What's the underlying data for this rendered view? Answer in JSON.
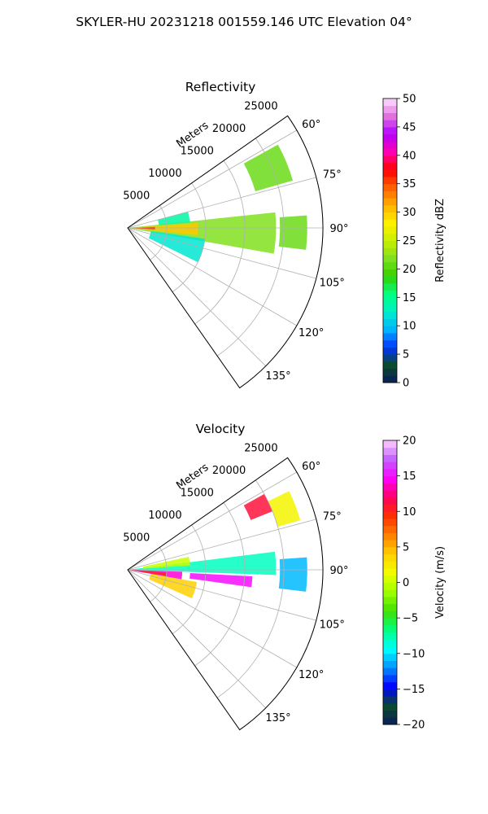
{
  "suptitle": "SKYLER-HU  20231218  001559.146 UTC Elevation 04°",
  "colors": {
    "grid": "#b0b0b0",
    "frame": "#000000",
    "reflectivity_stops": [
      "#081d58",
      "#0b4a2e",
      "#0034ff",
      "#00b4ff",
      "#00f0c8",
      "#00ff80",
      "#35d000",
      "#80e020",
      "#c8f000",
      "#fff000",
      "#ffb000",
      "#ff6000",
      "#ff0000",
      "#ff00b0",
      "#b000ff",
      "#e070e0",
      "#ffe0ff"
    ],
    "velocity_stops": [
      "#081d58",
      "#0b4a2e",
      "#0000ff",
      "#0090ff",
      "#00ffff",
      "#00ff80",
      "#40e000",
      "#a0ff00",
      "#f0ff00",
      "#ffd000",
      "#ff8000",
      "#ff3000",
      "#ff0060",
      "#ff00ff",
      "#c060ff",
      "#ffd0ff"
    ]
  },
  "chart_data": [
    {
      "type": "heatmap",
      "projection": "polar-sector",
      "title": "Reflectivity",
      "r_label": "Meters",
      "r_ticks": [
        5000,
        10000,
        15000,
        20000,
        25000
      ],
      "r_tick_labels": [
        "5000",
        "10000",
        "15000",
        "20000",
        "25000"
      ],
      "r_max": 25000,
      "theta_range_deg": [
        55,
        145
      ],
      "theta_ticks_deg": [
        60,
        75,
        90,
        105,
        120,
        135
      ],
      "theta_tick_labels": [
        "60°",
        "75°",
        "90°",
        "105°",
        "120°",
        "135°"
      ],
      "colorbar": {
        "label": "Reflectivity dBZ",
        "range": [
          0,
          50
        ],
        "ticks": [
          0,
          5,
          10,
          15,
          20,
          25,
          30,
          35,
          40,
          45,
          50
        ],
        "tick_labels": [
          "0",
          "5",
          "10",
          "15",
          "20",
          "25",
          "30",
          "35",
          "40",
          "45",
          "50"
        ]
      },
      "echo_regions": [
        {
          "r_min": 0,
          "r_max": 19000,
          "theta_min": 84,
          "theta_max": 100,
          "value": 22
        },
        {
          "r_min": 1000,
          "r_max": 9000,
          "theta_min": 86,
          "theta_max": 96,
          "value": 30
        },
        {
          "r_min": 500,
          "r_max": 3500,
          "theta_min": 88,
          "theta_max": 93,
          "value": 38
        },
        {
          "r_min": 3000,
          "r_max": 10000,
          "theta_min": 98,
          "theta_max": 116,
          "value": 12
        },
        {
          "r_min": 4000,
          "r_max": 8000,
          "theta_min": 75,
          "theta_max": 85,
          "value": 14
        },
        {
          "r_min": 17000,
          "r_max": 22000,
          "theta_min": 61,
          "theta_max": 74,
          "value": 21
        },
        {
          "r_min": 19500,
          "r_max": 23000,
          "theta_min": 86,
          "theta_max": 97,
          "value": 21
        }
      ]
    },
    {
      "type": "heatmap",
      "projection": "polar-sector",
      "title": "Velocity",
      "r_label": "Meters",
      "r_ticks": [
        5000,
        10000,
        15000,
        20000,
        25000
      ],
      "r_tick_labels": [
        "5000",
        "10000",
        "15000",
        "20000",
        "25000"
      ],
      "r_max": 25000,
      "theta_range_deg": [
        55,
        145
      ],
      "theta_ticks_deg": [
        60,
        75,
        90,
        105,
        120,
        135
      ],
      "theta_tick_labels": [
        "60°",
        "75°",
        "90°",
        "105°",
        "120°",
        "135°"
      ],
      "colorbar": {
        "label": "Velocity (m/s)",
        "range": [
          -20,
          20
        ],
        "ticks": [
          -20,
          -15,
          -10,
          -5,
          0,
          5,
          10,
          15,
          20
        ],
        "tick_labels": [
          "−20",
          "−15",
          "−10",
          "−5",
          "0",
          "5",
          "10",
          "15",
          "20"
        ]
      },
      "echo_regions": [
        {
          "r_min": 0,
          "r_max": 19000,
          "theta_min": 83,
          "theta_max": 92,
          "value": -8
        },
        {
          "r_min": 0,
          "r_max": 7000,
          "theta_min": 92,
          "theta_max": 100,
          "value": 14
        },
        {
          "r_min": 500,
          "r_max": 5000,
          "theta_min": 94,
          "theta_max": 99,
          "value": 10
        },
        {
          "r_min": 8000,
          "r_max": 16000,
          "theta_min": 93,
          "theta_max": 98,
          "value": 15
        },
        {
          "r_min": 2000,
          "r_max": 8000,
          "theta_min": 78,
          "theta_max": 86,
          "value": 0
        },
        {
          "r_min": 17000,
          "r_max": 20000,
          "theta_min": 61,
          "theta_max": 68,
          "value": 11
        },
        {
          "r_min": 20000,
          "r_max": 23000,
          "theta_min": 64,
          "theta_max": 74,
          "value": 2
        },
        {
          "r_min": 19500,
          "r_max": 23000,
          "theta_min": 86,
          "theta_max": 97,
          "value": -11
        },
        {
          "r_min": 3000,
          "r_max": 9000,
          "theta_min": 100,
          "theta_max": 114,
          "value": 4
        }
      ]
    }
  ]
}
